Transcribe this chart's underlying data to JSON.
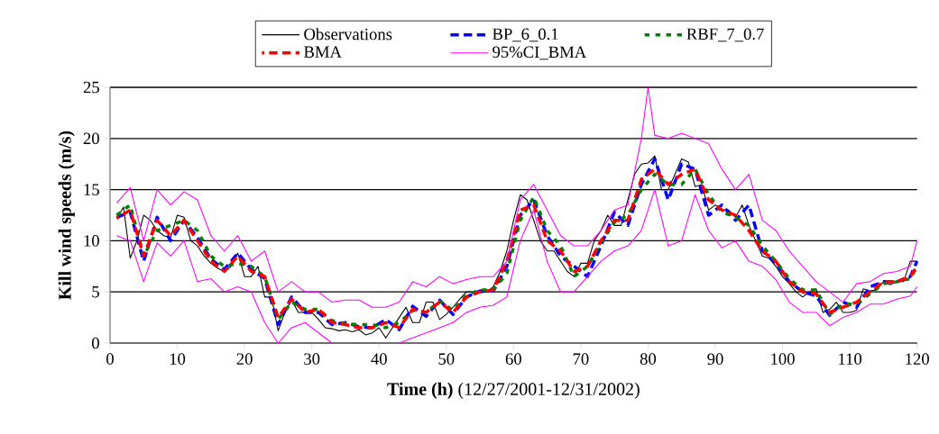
{
  "chart_data": {
    "type": "line",
    "xlabel": "**Time (h)** (12/27/2001-12/31/2002)",
    "ylabel": "Kill wind speeds (m/s)",
    "xlim": [
      0,
      120
    ],
    "ylim": [
      0,
      25
    ],
    "xticks": [
      0,
      10,
      20,
      30,
      40,
      50,
      60,
      70,
      80,
      90,
      100,
      110,
      120
    ],
    "yticks": [
      0,
      5,
      10,
      15,
      20,
      25
    ],
    "grid": "y",
    "legend": "top",
    "series": [
      {
        "name": "Observations",
        "color": "#000000",
        "line_style": "solid",
        "x": [
          1,
          2,
          3,
          4,
          5,
          6,
          7,
          8,
          9,
          10,
          11,
          12,
          13,
          14,
          15,
          16,
          17,
          18,
          19,
          20,
          21,
          22,
          23,
          24,
          25,
          26,
          27,
          28,
          29,
          30,
          31,
          32,
          33,
          34,
          35,
          36,
          37,
          38,
          39,
          40,
          41,
          42,
          43,
          44,
          45,
          46,
          47,
          48,
          49,
          50,
          51,
          52,
          53,
          54,
          55,
          56,
          57,
          58,
          59,
          60,
          61,
          62,
          63,
          64,
          65,
          66,
          67,
          68,
          69,
          70,
          71,
          72,
          73,
          74,
          75,
          76,
          77,
          78,
          79,
          80,
          81,
          82,
          83,
          84,
          85,
          86,
          87,
          88,
          89,
          90,
          91,
          92,
          93,
          94,
          95,
          96,
          97,
          98,
          99,
          100,
          101,
          102,
          103,
          104,
          105,
          106,
          107,
          108,
          109,
          110,
          111,
          112,
          113,
          114,
          115,
          116,
          117,
          118,
          119,
          120
        ],
        "values": [
          12.2,
          13.3,
          8.3,
          10,
          12.5,
          12,
          11,
          10.5,
          10.3,
          12.5,
          12.3,
          10,
          9.5,
          8.5,
          7.8,
          7.3,
          7,
          7.5,
          8.8,
          6.5,
          6.5,
          7.5,
          4.5,
          4.5,
          1.2,
          3,
          4.2,
          3,
          3,
          3,
          2.3,
          1.5,
          1.4,
          1.2,
          1.3,
          1.1,
          1.3,
          0.8,
          1,
          1.5,
          0.5,
          1.5,
          2.5,
          3.5,
          2,
          2,
          4,
          4,
          2.3,
          2.8,
          3.5,
          4.3,
          5,
          5,
          4.9,
          5,
          5.5,
          7,
          9,
          12,
          14.5,
          14,
          12,
          10,
          9,
          9,
          8,
          7,
          6.5,
          7.8,
          7.8,
          10,
          11,
          12.5,
          11.5,
          11.5,
          14,
          16.5,
          17.5,
          17.6,
          18.3,
          15,
          15,
          16.5,
          18,
          17.7,
          15.3,
          15.5,
          13,
          13.5,
          13,
          13,
          12.3,
          13.5,
          11.5,
          10,
          8.5,
          8.3,
          7.5,
          6.5,
          5.8,
          5,
          4.5,
          5,
          5.3,
          3,
          3.3,
          4,
          3,
          3,
          3.2,
          5.3,
          5.1,
          5.2,
          6,
          5.7,
          6,
          6,
          8,
          8
        ]
      },
      {
        "name": "BP_6_0.1",
        "color": "#0000ff",
        "line_style": "dashed",
        "x": [
          1,
          3,
          5,
          7,
          9,
          11,
          13,
          15,
          17,
          19,
          21,
          23,
          25,
          27,
          29,
          31,
          33,
          35,
          37,
          39,
          41,
          43,
          45,
          47,
          49,
          51,
          53,
          55,
          57,
          59,
          61,
          63,
          65,
          67,
          69,
          71,
          73,
          75,
          77,
          79,
          81,
          83,
          85,
          87,
          89,
          91,
          93,
          95,
          97,
          99,
          101,
          103,
          105,
          107,
          109,
          111,
          113,
          115,
          117,
          119,
          120
        ],
        "values": [
          12.3,
          12.8,
          8,
          12.3,
          10,
          12,
          10.3,
          8.2,
          7.2,
          8.8,
          7.2,
          6.3,
          1.8,
          4.5,
          3,
          3,
          1.8,
          2,
          1.6,
          1.5,
          2.3,
          1.3,
          3.6,
          2.6,
          4.2,
          2.8,
          4.5,
          5.1,
          5.1,
          7.5,
          12.5,
          14,
          10.5,
          8.5,
          7.5,
          6.5,
          9.5,
          12.8,
          11.5,
          15.5,
          18,
          14,
          17.5,
          17,
          12.5,
          13.5,
          12,
          13.5,
          9,
          7.8,
          6,
          5,
          4.6,
          2.7,
          4,
          3.5,
          5.5,
          6,
          6,
          6.5,
          8
        ]
      },
      {
        "name": "RBF_7_0.7",
        "color": "#008000",
        "line_style": "dotted",
        "x": [
          1,
          3,
          5,
          7,
          9,
          11,
          13,
          15,
          17,
          19,
          21,
          23,
          25,
          27,
          29,
          31,
          33,
          35,
          37,
          39,
          41,
          43,
          45,
          47,
          49,
          51,
          53,
          55,
          57,
          59,
          61,
          63,
          65,
          67,
          69,
          71,
          73,
          75,
          77,
          79,
          81,
          83,
          85,
          87,
          89,
          91,
          93,
          95,
          97,
          99,
          101,
          103,
          105,
          107,
          109,
          111,
          113,
          115,
          117,
          119,
          120
        ],
        "values": [
          12.5,
          13.5,
          8.5,
          11,
          11.5,
          12,
          11,
          8.5,
          7.5,
          7.8,
          7.5,
          6.5,
          2.3,
          4,
          3.3,
          3.3,
          2.2,
          1.9,
          1.8,
          1.8,
          1.5,
          2,
          3.2,
          3,
          4.1,
          3.2,
          4.7,
          5.2,
          5.2,
          6.8,
          12,
          14.3,
          11,
          9.5,
          6.5,
          7.5,
          9.8,
          11.8,
          12.5,
          15,
          16.5,
          15.5,
          15.5,
          17,
          14.5,
          12.8,
          12.3,
          11.5,
          9.5,
          8,
          6.3,
          5.2,
          5.2,
          2.8,
          3.8,
          3.8,
          4.8,
          5.8,
          6,
          6.3,
          7.5
        ]
      },
      {
        "name": "BMA",
        "color": "#ff0000",
        "line_style": "dashed",
        "x": [
          1,
          3,
          5,
          7,
          9,
          11,
          13,
          15,
          17,
          19,
          21,
          23,
          25,
          27,
          29,
          31,
          33,
          35,
          37,
          39,
          41,
          43,
          45,
          47,
          49,
          51,
          53,
          55,
          57,
          59,
          61,
          63,
          65,
          67,
          69,
          71,
          73,
          75,
          77,
          79,
          81,
          83,
          85,
          87,
          89,
          91,
          93,
          95,
          97,
          99,
          101,
          103,
          105,
          107,
          109,
          111,
          113,
          115,
          117,
          119,
          120
        ],
        "values": [
          12.2,
          13,
          8.5,
          12,
          10.5,
          12,
          10,
          8,
          7,
          8.5,
          7,
          6.5,
          2.5,
          4.3,
          3,
          3.3,
          2,
          1.8,
          1.5,
          1.5,
          2,
          1.5,
          3.3,
          3,
          4,
          3,
          4.5,
          5,
          5.2,
          8,
          13,
          13.5,
          10,
          9,
          7,
          7.5,
          10,
          12,
          12,
          16,
          17,
          15.5,
          16.5,
          17,
          14,
          13,
          12.5,
          11,
          9,
          8,
          6,
          5,
          4.8,
          3,
          3.5,
          4,
          5,
          6,
          6,
          6.5,
          7.5
        ]
      },
      {
        "name": "95%CI_BMA",
        "color": "#ff00ff",
        "line_style": "solid",
        "x": [
          1,
          3,
          5,
          7,
          9,
          11,
          13,
          15,
          17,
          19,
          21,
          23,
          25,
          27,
          29,
          31,
          33,
          35,
          37,
          39,
          41,
          43,
          45,
          47,
          49,
          51,
          53,
          55,
          57,
          59,
          61,
          63,
          65,
          67,
          69,
          71,
          73,
          75,
          77,
          79,
          80,
          81,
          83,
          85,
          87,
          89,
          91,
          93,
          95,
          97,
          99,
          101,
          103,
          105,
          107,
          109,
          111,
          113,
          115,
          117,
          119,
          120
        ],
        "values": [
          13.7,
          15.2,
          10,
          15,
          13.5,
          14.8,
          14,
          10.5,
          9,
          10.5,
          8,
          9,
          5,
          6,
          5,
          5,
          4,
          4.2,
          4.2,
          3.5,
          3.5,
          4,
          6,
          5.5,
          6.5,
          5.8,
          6.2,
          6.5,
          6.5,
          8,
          14,
          15.5,
          13,
          10.5,
          9.5,
          9.5,
          11,
          13,
          13.5,
          20,
          25,
          20.3,
          20,
          20.5,
          20,
          19.5,
          17,
          15,
          16.5,
          12,
          11,
          9,
          7.5,
          6,
          5,
          4,
          5.8,
          6,
          6.8,
          7,
          7.5,
          10
        ]
      },
      {
        "color": "#ff00ff",
        "line_style": "solid",
        "x": [
          1,
          3,
          5,
          7,
          9,
          11,
          13,
          15,
          17,
          19,
          21,
          23,
          25,
          27,
          29,
          31,
          33,
          35,
          37,
          39,
          41,
          43,
          45,
          47,
          49,
          51,
          53,
          55,
          57,
          59,
          61,
          63,
          65,
          67,
          69,
          71,
          73,
          75,
          77,
          79,
          81,
          83,
          85,
          87,
          89,
          91,
          93,
          95,
          97,
          99,
          101,
          103,
          105,
          107,
          109,
          111,
          113,
          115,
          117,
          119,
          120
        ],
        "values": [
          10.5,
          10,
          6,
          9.8,
          8.5,
          10,
          6,
          6.3,
          5,
          5.5,
          5,
          2,
          0,
          1.5,
          2,
          1,
          0,
          null,
          null,
          null,
          null,
          0,
          0.5,
          1,
          1.5,
          2,
          3,
          3.5,
          3.7,
          4.5,
          10,
          13,
          8,
          5,
          5,
          6.5,
          8,
          9,
          9.5,
          11,
          15,
          9.5,
          10,
          14.5,
          11,
          9.3,
          10,
          8,
          7.5,
          6.2,
          4,
          3,
          3,
          1.7,
          2.5,
          3,
          3.8,
          3.8,
          4.3,
          4.6,
          5.5
        ]
      }
    ]
  }
}
